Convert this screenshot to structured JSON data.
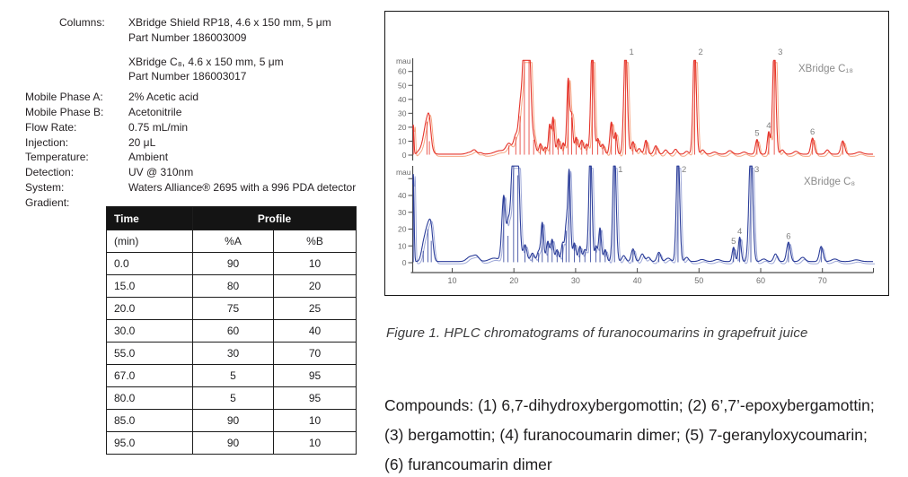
{
  "method": {
    "items": [
      {
        "label": "Columns:",
        "indent": true,
        "lines": [
          "XBridge Shield RP18, 4.6 x 150 mm, 5 μm",
          "Part Number 186003009"
        ]
      },
      {
        "label": "",
        "gap": "gap10",
        "lines": [
          "XBridge C₈, 4.6 x 150 mm, 5 μm",
          "Part Number 186003017"
        ]
      },
      {
        "label": "Mobile Phase A:",
        "gap": "gap6",
        "lines": [
          "2% Acetic acid"
        ]
      },
      {
        "label": "Mobile Phase B:",
        "lines": [
          "Acetonitrile"
        ]
      },
      {
        "label": "Flow Rate:",
        "lines": [
          "0.75 mL/min"
        ]
      },
      {
        "label": "Injection:",
        "lines": [
          "20 μL"
        ]
      },
      {
        "label": "Temperature:",
        "lines": [
          "Ambient"
        ]
      },
      {
        "label": "Detection:",
        "lines": [
          "UV @ 310nm"
        ]
      },
      {
        "label": "System:",
        "lines": [
          "Waters Alliance® 2695 with a 996 PDA detector"
        ]
      },
      {
        "label": "Gradient:",
        "lines": []
      }
    ]
  },
  "gradient_table": {
    "header_row1": [
      "Time",
      "Profile"
    ],
    "header_row2": [
      "(min)",
      "%A",
      "%B"
    ],
    "rows": [
      [
        "0.0",
        "90",
        "10"
      ],
      [
        "15.0",
        "80",
        "20"
      ],
      [
        "20.0",
        "75",
        "25"
      ],
      [
        "30.0",
        "60",
        "40"
      ],
      [
        "55.0",
        "30",
        "70"
      ],
      [
        "67.0",
        "5",
        "95"
      ],
      [
        "80.0",
        "5",
        "95"
      ],
      [
        "85.0",
        "90",
        "10"
      ],
      [
        "95.0",
        "90",
        "10"
      ]
    ]
  },
  "figure": {
    "caption": "Figure 1.  HPLC chromatograms of furanocoumarins in grapefruit juice"
  },
  "compounds": {
    "lines": [
      "Compounds: (1) 6,7-dihydroxybergomottin; (2) 6’,7’-epoxybergamottin;",
      "(3) bergamottin; (4) furanocoumarin dimer; (5) 7-geranyloxycoumarin;",
      "(6) furancoumarin dimer"
    ]
  },
  "chart_data": [
    {
      "type": "line",
      "title": "XBridge C₁₈",
      "ylabel": "mau",
      "xlabel": "",
      "yticks": [
        0,
        10,
        20,
        30,
        40,
        50,
        60
      ],
      "yticks_unlabeled": [],
      "ylim": [
        0,
        68
      ],
      "xlim": [
        3.6,
        78.2
      ],
      "grid": false,
      "colors": {
        "main": "#e5332a",
        "shadow": "#f6a683"
      },
      "baseline": 0.7,
      "peaks": [
        [
          3.7,
          21,
          0.1
        ],
        [
          4.5,
          1.5,
          0.25
        ],
        [
          5.0,
          2,
          0.3
        ],
        [
          5.9,
          24,
          0.5
        ],
        [
          6.3,
          10,
          0.25
        ],
        [
          12.8,
          1.2,
          0.5
        ],
        [
          13.6,
          2.8,
          0.35
        ],
        [
          14.6,
          1,
          0.3
        ],
        [
          17.8,
          2.5,
          0.9
        ],
        [
          19.2,
          7,
          0.45
        ],
        [
          20.3,
          13,
          0.35
        ],
        [
          21.0,
          28,
          0.28
        ],
        [
          21.7,
          80,
          0.33
        ],
        [
          22.45,
          80,
          0.3
        ],
        [
          23.2,
          11,
          0.3
        ],
        [
          24.3,
          7.5,
          0.25
        ],
        [
          25.1,
          5,
          0.2
        ],
        [
          25.8,
          21,
          0.2
        ],
        [
          26.35,
          26,
          0.2
        ],
        [
          27.2,
          11,
          0.25
        ],
        [
          28.0,
          8,
          0.2
        ],
        [
          28.8,
          54,
          0.22
        ],
        [
          29.35,
          27,
          0.2
        ],
        [
          30.1,
          12,
          0.25
        ],
        [
          31.0,
          10,
          0.28
        ],
        [
          31.8,
          7,
          0.2
        ],
        [
          32.7,
          80,
          0.25
        ],
        [
          33.6,
          11,
          0.25
        ],
        [
          34.4,
          7,
          0.28
        ],
        [
          35.8,
          23,
          0.25
        ],
        [
          36.5,
          15,
          0.2
        ],
        [
          38.1,
          80,
          0.28
        ],
        [
          39.3,
          9,
          0.25
        ],
        [
          40.3,
          4,
          0.28
        ],
        [
          41.4,
          10,
          0.25
        ],
        [
          43.0,
          6,
          0.3
        ],
        [
          44.6,
          3,
          0.3
        ],
        [
          46.2,
          3.5,
          0.3
        ],
        [
          48.0,
          2,
          0.3
        ],
        [
          49.3,
          80,
          0.26
        ],
        [
          50.6,
          3,
          0.3
        ],
        [
          52.5,
          1.5,
          0.4
        ],
        [
          55.0,
          2.5,
          0.4
        ],
        [
          57.3,
          1.5,
          0.4
        ],
        [
          59.4,
          10.5,
          0.25
        ],
        [
          61.3,
          16,
          0.22
        ],
        [
          62.2,
          80,
          0.26
        ],
        [
          63.5,
          3,
          0.3
        ],
        [
          65.7,
          2,
          0.4
        ],
        [
          68.4,
          11.5,
          0.28
        ],
        [
          70.8,
          3,
          0.3
        ],
        [
          73.3,
          9.5,
          0.3
        ],
        [
          76.0,
          1.5,
          0.5
        ]
      ],
      "peak_labels": [
        {
          "n": "1",
          "t": 38.1
        },
        {
          "n": "2",
          "t": 49.3
        },
        {
          "n": "3",
          "t": 62.2
        },
        {
          "n": "4",
          "t": 61.3,
          "h": 16
        },
        {
          "n": "5",
          "t": 59.4,
          "h": 10.5
        },
        {
          "n": "6",
          "t": 68.4,
          "h": 11.5
        }
      ]
    },
    {
      "type": "line",
      "title": "XBridge C₈",
      "ylabel": "mau",
      "xlabel": "",
      "yticks": [
        0,
        10,
        20,
        30,
        40
      ],
      "yticks_unlabeled": [
        50
      ],
      "ylim": [
        0,
        57.5
      ],
      "xlim": [
        3.6,
        78.2
      ],
      "xticks": [
        10,
        20,
        30,
        40,
        50,
        60,
        70
      ],
      "grid": false,
      "colors": {
        "main": "#2b3d99",
        "shadow": "#9fa9d8"
      },
      "baseline": 0.7,
      "peaks": [
        [
          3.7,
          52,
          0.12
        ],
        [
          5.3,
          7,
          0.35
        ],
        [
          6.05,
          20,
          0.45
        ],
        [
          6.6,
          13,
          0.3
        ],
        [
          12.9,
          2.8,
          0.55
        ],
        [
          13.9,
          3.2,
          0.45
        ],
        [
          16.8,
          2,
          0.8
        ],
        [
          18.35,
          39,
          0.3
        ],
        [
          19.05,
          16,
          0.22
        ],
        [
          19.95,
          70,
          0.42
        ],
        [
          20.65,
          52,
          0.3
        ],
        [
          21.8,
          10,
          0.3
        ],
        [
          23.0,
          5,
          0.3
        ],
        [
          24.0,
          6,
          0.25
        ],
        [
          24.6,
          23,
          0.22
        ],
        [
          25.5,
          12,
          0.25
        ],
        [
          26.2,
          13,
          0.22
        ],
        [
          27.0,
          7,
          0.25
        ],
        [
          27.9,
          11,
          0.22
        ],
        [
          28.45,
          19,
          0.2
        ],
        [
          28.95,
          54,
          0.22
        ],
        [
          29.8,
          11,
          0.25
        ],
        [
          30.7,
          9,
          0.25
        ],
        [
          31.5,
          7,
          0.25
        ],
        [
          32.4,
          70,
          0.25
        ],
        [
          33.3,
          9,
          0.2
        ],
        [
          33.95,
          20,
          0.22
        ],
        [
          34.8,
          7,
          0.25
        ],
        [
          36.3,
          70,
          0.26
        ],
        [
          37.8,
          3.5,
          0.3
        ],
        [
          39.3,
          7.5,
          0.28
        ],
        [
          40.8,
          4.5,
          0.3
        ],
        [
          41.8,
          2.5,
          0.3
        ],
        [
          43.5,
          5.5,
          0.3
        ],
        [
          45.0,
          2,
          0.4
        ],
        [
          46.6,
          70,
          0.26
        ],
        [
          48.0,
          2.5,
          0.3
        ],
        [
          50.5,
          1.2,
          0.5
        ],
        [
          53.0,
          1.2,
          0.5
        ],
        [
          55.6,
          8.5,
          0.22
        ],
        [
          56.6,
          14.5,
          0.22
        ],
        [
          58.4,
          70,
          0.3
        ],
        [
          60.5,
          1.5,
          0.4
        ],
        [
          62.4,
          4.5,
          0.3
        ],
        [
          64.5,
          11.5,
          0.3
        ],
        [
          66.8,
          2.5,
          0.4
        ],
        [
          69.8,
          9,
          0.3
        ],
        [
          72.0,
          1.5,
          0.5
        ],
        [
          75.5,
          1,
          0.6
        ]
      ],
      "peak_labels": [
        {
          "n": "1",
          "t": 36.3
        },
        {
          "n": "2",
          "t": 46.6
        },
        {
          "n": "3",
          "t": 58.4
        },
        {
          "n": "4",
          "t": 56.6,
          "h": 14.5
        },
        {
          "n": "5",
          "t": 55.6,
          "h": 8.5
        },
        {
          "n": "6",
          "t": 64.5,
          "h": 11.5
        }
      ]
    }
  ]
}
